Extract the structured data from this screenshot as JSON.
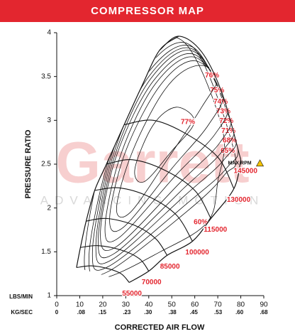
{
  "chart_data": {
    "type": "compressor_map",
    "title": "COMPRESSOR MAP",
    "xlabel": "CORRECTED AIR FLOW",
    "ylabel": "PRESSURE RATIO",
    "x_row_label": "LBS/MIN",
    "x2_row_label": "KG/SEC",
    "watermark": "Garrett",
    "watermark_tagline": "ADVANCING MOTION",
    "annotation": "MAX RPM",
    "xlim": [
      0,
      90
    ],
    "xticks": [
      0,
      10,
      20,
      30,
      40,
      50,
      60,
      70,
      80,
      90
    ],
    "x2lim": [
      0,
      0.68
    ],
    "x2ticks": [
      {
        "value": 0,
        "label": "0"
      },
      {
        "value": 0.08,
        "label": ".08"
      },
      {
        "value": 0.15,
        "label": ".15"
      },
      {
        "value": 0.23,
        "label": ".23"
      },
      {
        "value": 0.3,
        "label": ".30"
      },
      {
        "value": 0.38,
        "label": ".38"
      },
      {
        "value": 0.45,
        "label": ".45"
      },
      {
        "value": 0.53,
        "label": ".53"
      },
      {
        "value": 0.6,
        "label": ".60"
      },
      {
        "value": 0.68,
        "label": ".68"
      }
    ],
    "ylim": [
      1,
      4
    ],
    "yticks": [
      1,
      1.5,
      2,
      2.5,
      3,
      3.5,
      4
    ],
    "line_color": "#111111",
    "label_color": "#e3262f",
    "surge_line": {
      "x": [
        8.6,
        10.3,
        12.8,
        16.5,
        21.6,
        29.3,
        37,
        44.7,
        53
      ],
      "values": [
        1.32,
        1.55,
        1.85,
        2.2,
        2.5,
        2.95,
        3.39,
        3.8,
        3.96
      ]
    },
    "choke_line": {
      "x": [
        31.5,
        40,
        48,
        59,
        67,
        77,
        80
      ],
      "values": [
        1.15,
        1.28,
        1.46,
        1.62,
        1.88,
        2.22,
        2.55
      ]
    },
    "speed_lines": [
      {
        "name": "55000",
        "x": [
          8.6,
          15,
          22,
          28,
          31.5
        ],
        "values": [
          1.32,
          1.34,
          1.31,
          1.25,
          1.15
        ]
      },
      {
        "name": "70000",
        "x": [
          10.3,
          18,
          28,
          36,
          40
        ],
        "values": [
          1.55,
          1.57,
          1.52,
          1.42,
          1.28
        ]
      },
      {
        "name": "85000",
        "x": [
          12.8,
          22,
          34,
          43,
          48
        ],
        "values": [
          1.85,
          1.88,
          1.8,
          1.65,
          1.46
        ]
      },
      {
        "name": "100000",
        "x": [
          16.5,
          27,
          40,
          52,
          59
        ],
        "values": [
          2.2,
          2.23,
          2.13,
          1.92,
          1.62
        ]
      },
      {
        "name": "115000",
        "x": [
          21.6,
          33,
          47,
          60,
          67
        ],
        "values": [
          2.5,
          2.55,
          2.43,
          2.2,
          1.88
        ]
      },
      {
        "name": "130000",
        "x": [
          29.3,
          42,
          56,
          70,
          77
        ],
        "values": [
          2.95,
          3.0,
          2.85,
          2.58,
          2.22
        ]
      },
      {
        "name": "145000",
        "x": [
          44.7,
          53,
          63,
          72,
          80
        ],
        "values": [
          3.8,
          3.96,
          3.78,
          3.3,
          2.55
        ]
      }
    ],
    "efficiency_islands": [
      {
        "name": "60%",
        "x": [
          65.4,
          70,
          72,
          55,
          35,
          20,
          12,
          20,
          45
        ],
        "values": [
          1.835,
          2.3,
          2.9,
          3.9,
          3.7,
          2.6,
          1.4,
          1.2,
          1.5
        ]
      },
      {
        "name": "65%",
        "x": [
          77.1,
          59,
          38,
          22,
          14,
          22,
          57,
          73
        ],
        "values": [
          2.65,
          3.84,
          3.55,
          2.5,
          1.42,
          1.27,
          1.97,
          2.38
        ]
      },
      {
        "name": "68%",
        "x": [
          78,
          60,
          39,
          23,
          15.5,
          23,
          57,
          74
        ],
        "values": [
          2.77,
          3.82,
          3.52,
          2.53,
          1.48,
          1.34,
          2.06,
          2.46
        ]
      },
      {
        "name": "71%",
        "x": [
          77.4,
          60,
          40,
          24,
          17,
          24,
          56,
          73
        ],
        "values": [
          2.88,
          3.8,
          3.5,
          2.56,
          1.56,
          1.41,
          2.15,
          2.56
        ]
      },
      {
        "name": "72%",
        "x": [
          76.5,
          60,
          41,
          25,
          18,
          25,
          55,
          72
        ],
        "values": [
          2.99,
          3.78,
          3.48,
          2.58,
          1.62,
          1.48,
          2.22,
          2.65
        ]
      },
      {
        "name": "73%",
        "x": [
          75.2,
          60,
          42,
          26,
          19,
          26,
          54,
          71
        ],
        "values": [
          3.1,
          3.75,
          3.45,
          2.6,
          1.7,
          1.56,
          2.3,
          2.75
        ]
      },
      {
        "name": "74%",
        "x": [
          74,
          60,
          43,
          28,
          21,
          27,
          52,
          69
        ],
        "values": [
          3.21,
          3.72,
          3.42,
          2.62,
          1.78,
          1.66,
          2.38,
          2.85
        ]
      },
      {
        "name": "75%",
        "x": [
          72.5,
          60,
          45,
          30,
          23,
          29,
          50,
          66
        ],
        "values": [
          3.34,
          3.68,
          3.4,
          2.65,
          1.88,
          1.78,
          2.45,
          2.95
        ]
      },
      {
        "name": "76%",
        "x": [
          70.3,
          60,
          47,
          33,
          26,
          32,
          48,
          63
        ],
        "values": [
          3.51,
          3.62,
          3.35,
          2.65,
          2.0,
          1.95,
          2.55,
          3.15
        ]
      },
      {
        "name": "77%",
        "x": [
          59.8,
          52,
          42,
          34,
          38,
          50
        ],
        "values": [
          2.98,
          3.15,
          2.95,
          2.45,
          2.3,
          2.65
        ]
      }
    ]
  }
}
